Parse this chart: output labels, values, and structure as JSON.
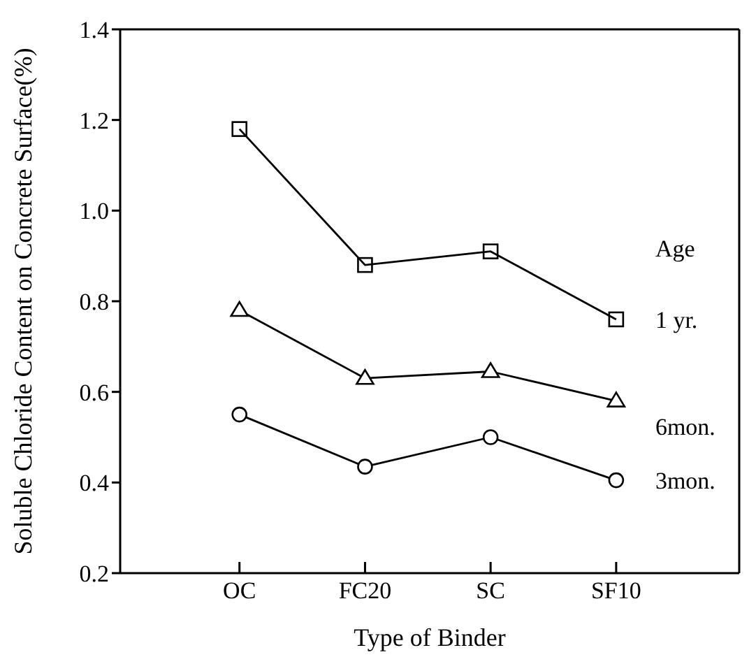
{
  "chart_data": {
    "type": "line",
    "xlabel": "Type of Binder",
    "ylabel": "Soluble Chloride Content on Concrete Surface(%)",
    "legend_title": "Age",
    "categories": [
      "OC",
      "FC20",
      "SC",
      "SF10"
    ],
    "series": [
      {
        "name": "1 yr.",
        "color": "#000000",
        "marker": "square",
        "values": [
          1.18,
          0.88,
          0.91,
          0.76
        ]
      },
      {
        "name": "6mon.",
        "color": "#000000",
        "marker": "triangle",
        "values": [
          0.78,
          0.63,
          0.645,
          0.58
        ]
      },
      {
        "name": "3mon.",
        "color": "#000000",
        "marker": "circle",
        "values": [
          0.55,
          0.435,
          0.5,
          0.405
        ]
      }
    ],
    "ylim": [
      0.2,
      1.4
    ],
    "yticks": [
      0.2,
      0.4,
      0.6,
      0.8,
      {
        "value": 1,
        "label": "1.0"
      },
      1.2,
      1.4
    ],
    "grid": false,
    "legend": false,
    "line_style": "solid"
  }
}
